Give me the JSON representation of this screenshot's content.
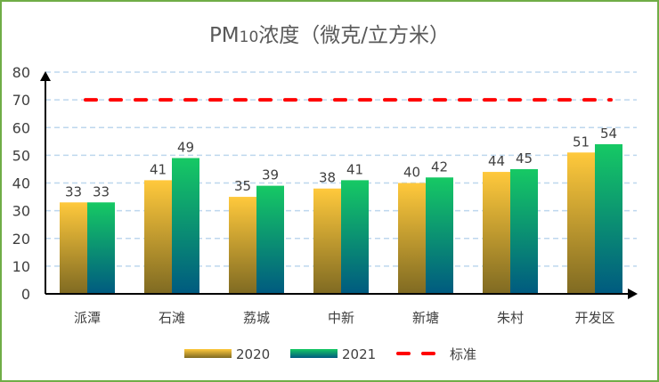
{
  "chart_data": {
    "type": "bar",
    "title_prefix": "PM",
    "title_sub": "10",
    "title_rest": "浓度（微克/立方米）",
    "categories": [
      "派潭",
      "石滩",
      "荔城",
      "中新",
      "新塘",
      "朱村",
      "开发区"
    ],
    "series": [
      {
        "name": "2020",
        "values": [
          33,
          41,
          35,
          38,
          40,
          44,
          51
        ],
        "colors": [
          "#ffc93c",
          "#7f6a22"
        ]
      },
      {
        "name": "2021",
        "values": [
          33,
          49,
          39,
          41,
          42,
          45,
          54
        ],
        "colors": [
          "#16c964",
          "#005a80"
        ]
      }
    ],
    "reference_line": {
      "name": "标准",
      "value": 70,
      "color": "#ff0000",
      "style": "dashed"
    },
    "ylim": [
      0,
      80
    ],
    "yticks": [
      0,
      10,
      20,
      30,
      40,
      50,
      60,
      70,
      80
    ],
    "grid": true,
    "legend": "bottom",
    "data_labels": true
  }
}
